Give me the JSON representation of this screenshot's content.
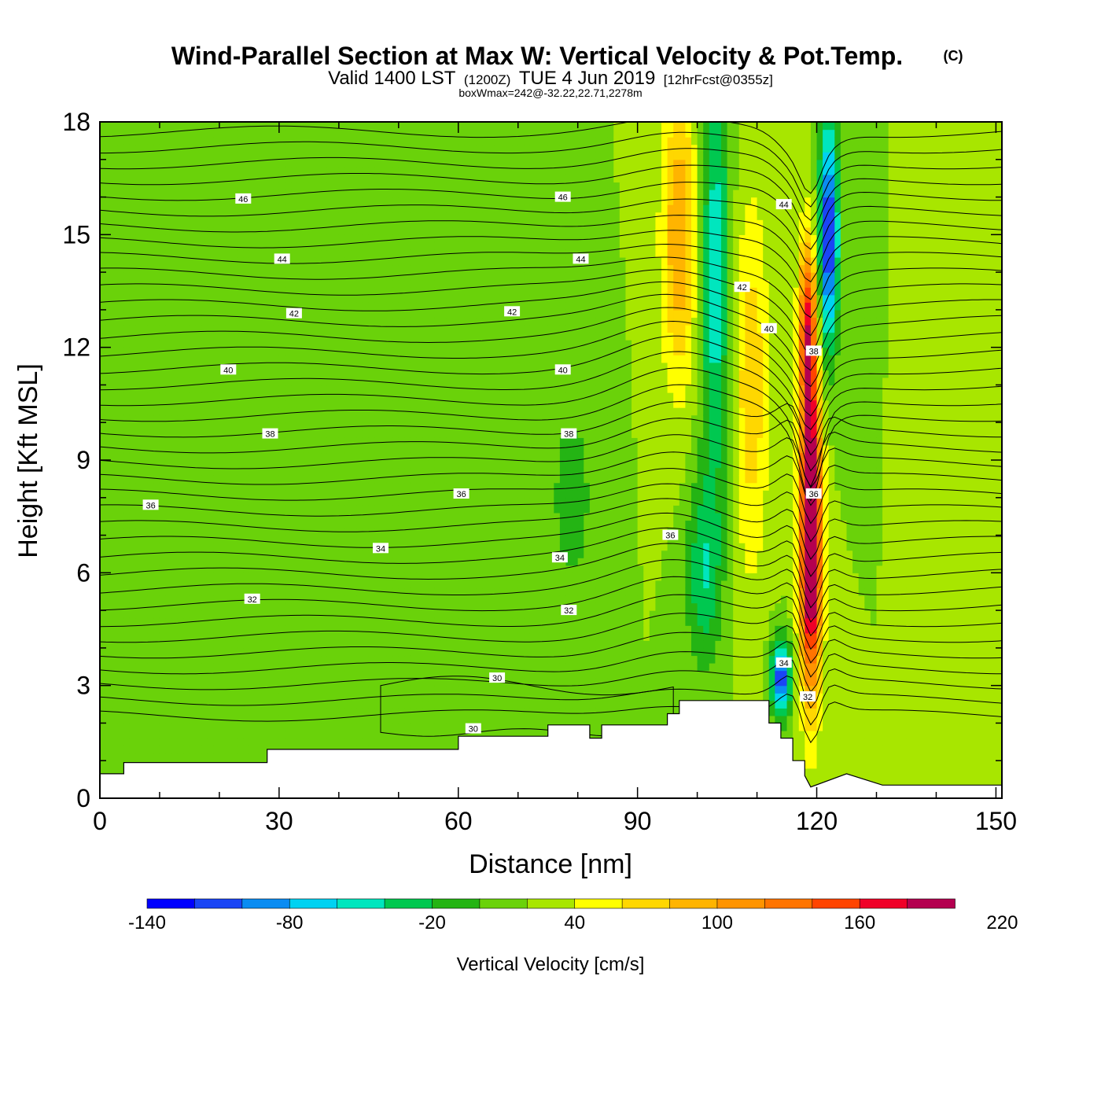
{
  "chart_data": {
    "type": "contour-cross-section",
    "title": {
      "main": "Wind-Parallel Section at Max W: Vertical Velocity & Pot.Temp.",
      "copyright": "(C)",
      "valid_prefix": "Valid 1400 LST",
      "valid_utc": "(1200Z)",
      "valid_date": "TUE 4 Jun 2019",
      "forecast": "[12hrFcst@0355z]",
      "box_info": "boxWmax=242@-32.22,22.71,2278m"
    },
    "xlabel": "Distance [nm]",
    "ylabel": "Height [Kft MSL]",
    "xlim": [
      0,
      151
    ],
    "ylim": [
      0,
      18
    ],
    "x_ticks": [
      0,
      30,
      60,
      90,
      120,
      150
    ],
    "y_ticks": [
      0,
      3,
      6,
      9,
      12,
      15,
      18
    ],
    "x_tick_labels": [
      "0",
      "30",
      "60",
      "90",
      "120",
      "150"
    ],
    "y_tick_labels": [
      "0",
      "3",
      "6",
      "9",
      "12",
      "15",
      "18"
    ],
    "colorbar": {
      "title": "Vertical Velocity [cm/s]",
      "min": -140,
      "step": 20,
      "colors": [
        "#0000ff",
        "#1a45f5",
        "#0a8cf2",
        "#00d2f2",
        "#00e6be",
        "#00c850",
        "#24b414",
        "#6ad20a",
        "#a8e600",
        "#ffff00",
        "#ffd700",
        "#ffb400",
        "#ff9400",
        "#ff7400",
        "#ff4400",
        "#f00028",
        "#b40050"
      ],
      "labels": [
        "-140",
        "-80",
        "-20",
        "40",
        "100",
        "160",
        "220"
      ],
      "label_values": [
        -140,
        -80,
        -20,
        40,
        100,
        160,
        220
      ]
    },
    "terrain": {
      "x": [
        0,
        4,
        4,
        28,
        28,
        60,
        60,
        75,
        75,
        82,
        82,
        84,
        84,
        95,
        95,
        97,
        97,
        112,
        112,
        114,
        114,
        116,
        116,
        118,
        118,
        119,
        119,
        125,
        125,
        131,
        131,
        151
      ],
      "height": [
        0.65,
        0.65,
        0.95,
        0.95,
        1.3,
        1.3,
        1.65,
        1.65,
        1.95,
        1.95,
        1.6,
        1.6,
        1.95,
        1.95,
        2.25,
        2.25,
        2.6,
        2.6,
        2.0,
        2.0,
        1.6,
        1.6,
        1.0,
        1.0,
        0.6,
        0.3,
        0.3,
        0.65,
        0.65,
        0.35,
        0.35,
        0.35
      ]
    },
    "velocity_field": {
      "background": 20,
      "features": [
        {
          "name": "weak-sink-left",
          "x": 24,
          "h": 9,
          "sx": 6,
          "sh": 6,
          "amp": -18
        },
        {
          "name": "weak-sink-mid",
          "x": 44,
          "h": 13,
          "sx": 6,
          "sh": 5,
          "amp": -14
        },
        {
          "name": "downdraft-near-80",
          "x": 79,
          "h": 8,
          "sx": 4,
          "sh": 3,
          "amp": -30
        },
        {
          "name": "updraft-upper-97",
          "x": 97,
          "h": 15,
          "sx": 3,
          "sh": 4,
          "amp": 80
        },
        {
          "name": "downdraft-upper-103",
          "x": 103,
          "h": 14,
          "sx": 2.5,
          "sh": 6,
          "amp": -75
        },
        {
          "name": "downdraft-mid-101",
          "x": 101,
          "h": 6,
          "sx": 3,
          "sh": 2.5,
          "amp": -55
        },
        {
          "name": "updraft-109",
          "x": 109,
          "h": 11,
          "sx": 3,
          "sh": 5,
          "amp": 55
        },
        {
          "name": "low-downdraft-114",
          "x": 114,
          "h": 3.2,
          "sx": 1.6,
          "sh": 1.0,
          "amp": -140
        },
        {
          "name": "max-updraft-core",
          "x": 119,
          "h": 7,
          "sx": 1.8,
          "sh": 4,
          "amp": 230
        },
        {
          "name": "upper-updraft-118",
          "x": 118.5,
          "h": 12.5,
          "sx": 1.5,
          "sh": 2.5,
          "amp": 130
        },
        {
          "name": "upper-downdraft-122",
          "x": 122,
          "h": 15,
          "sx": 1.6,
          "sh": 3,
          "amp": -150
        }
      ]
    },
    "pot_temp": {
      "levels": [
        30,
        32,
        34,
        36,
        38,
        40,
        42,
        44,
        46
      ],
      "label_positions": [
        {
          "value": "46",
          "x": 24,
          "h": 15.95
        },
        {
          "value": "46",
          "x": 77.5,
          "h": 16.0
        },
        {
          "value": "44",
          "x": 30.5,
          "h": 14.35
        },
        {
          "value": "44",
          "x": 80.5,
          "h": 14.35
        },
        {
          "value": "44",
          "x": 114.5,
          "h": 15.8
        },
        {
          "value": "42",
          "x": 32.5,
          "h": 12.9
        },
        {
          "value": "42",
          "x": 69,
          "h": 12.95
        },
        {
          "value": "42",
          "x": 107.5,
          "h": 13.6
        },
        {
          "value": "40",
          "x": 21.5,
          "h": 11.4
        },
        {
          "value": "40",
          "x": 77.5,
          "h": 11.4
        },
        {
          "value": "40",
          "x": 112,
          "h": 12.5
        },
        {
          "value": "38",
          "x": 28.5,
          "h": 9.7
        },
        {
          "value": "38",
          "x": 78.5,
          "h": 9.7
        },
        {
          "value": "38",
          "x": 119.5,
          "h": 11.9
        },
        {
          "value": "36",
          "x": 8.5,
          "h": 7.8
        },
        {
          "value": "36",
          "x": 60.5,
          "h": 8.1
        },
        {
          "value": "36",
          "x": 95.5,
          "h": 7.0
        },
        {
          "value": "36",
          "x": 119.5,
          "h": 8.1
        },
        {
          "value": "34",
          "x": 47,
          "h": 6.65
        },
        {
          "value": "34",
          "x": 77,
          "h": 6.4
        },
        {
          "value": "34",
          "x": 114.5,
          "h": 3.6
        },
        {
          "value": "32",
          "x": 25.5,
          "h": 5.3
        },
        {
          "value": "32",
          "x": 78.5,
          "h": 5.0
        },
        {
          "value": "32",
          "x": 118.5,
          "h": 2.7
        },
        {
          "value": "30",
          "x": 66.5,
          "h": 3.2
        },
        {
          "value": "30",
          "x": 62.5,
          "h": 1.85
        }
      ]
    }
  }
}
